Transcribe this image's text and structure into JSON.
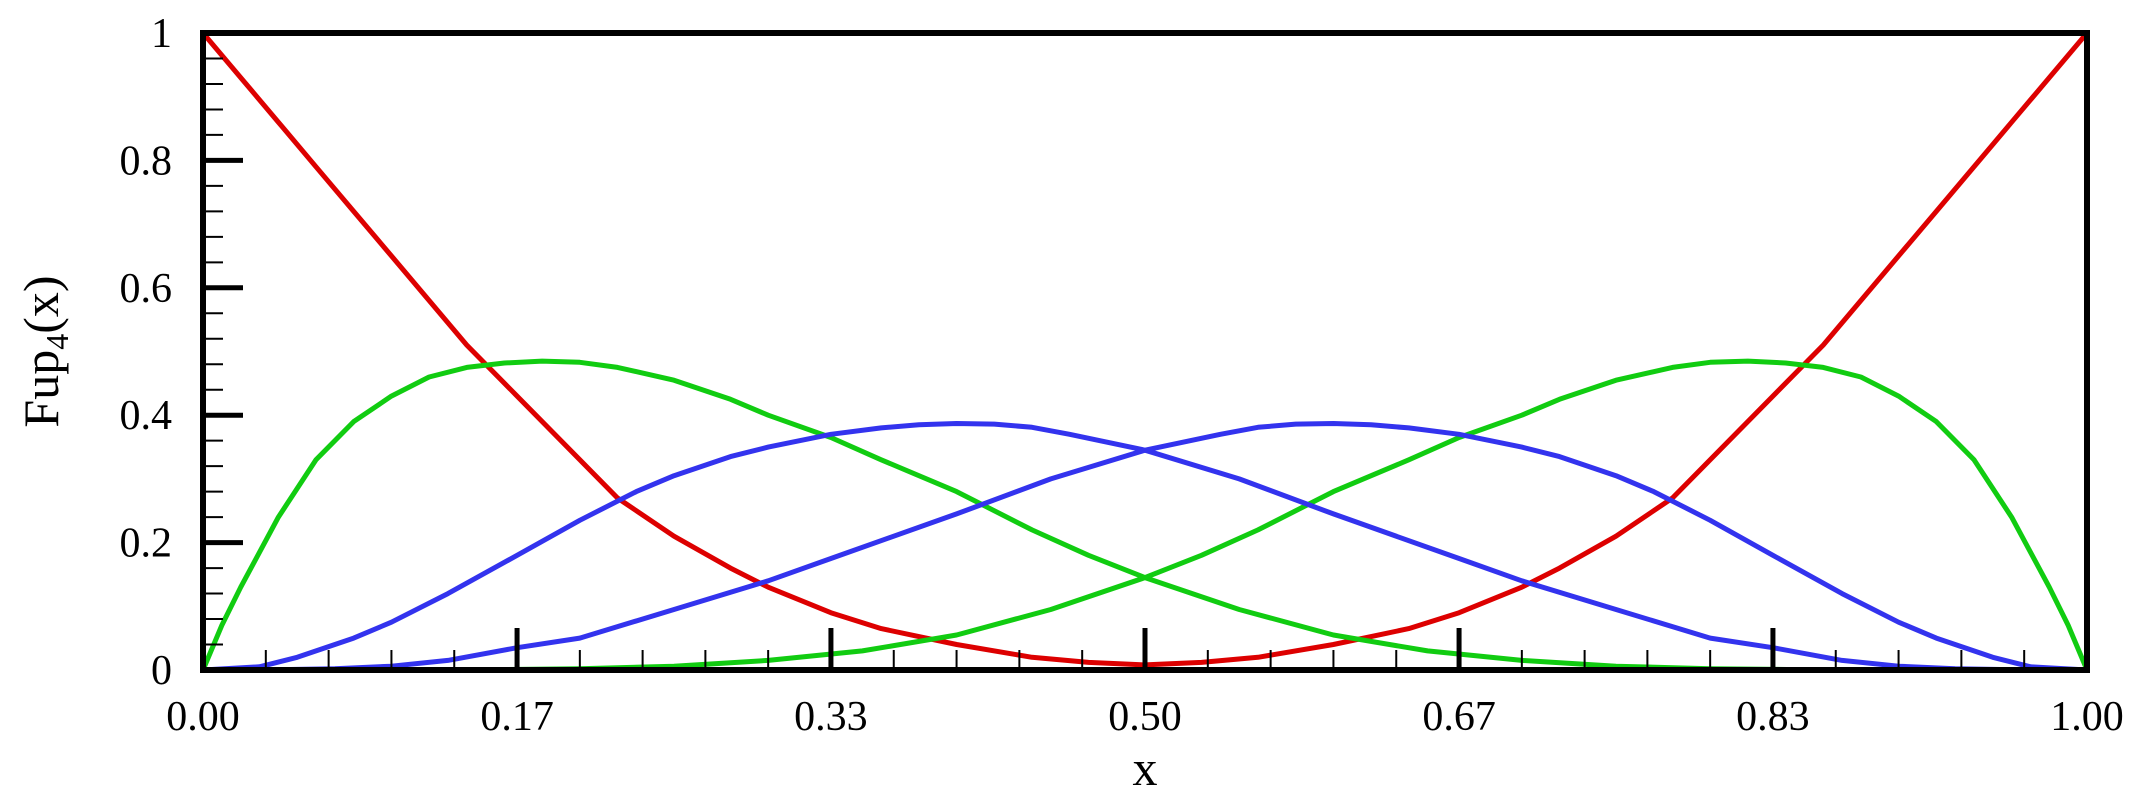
{
  "chart_data": {
    "type": "line",
    "title": "",
    "xlabel": "x",
    "ylabel": "Fup",
    "ylabel_sub": "4",
    "ylabel_tail": "(x)",
    "xlim": [
      0,
      1
    ],
    "ylim": [
      0,
      1
    ],
    "x_ticks": [
      0,
      0.1667,
      0.3333,
      0.5,
      0.6667,
      0.8333,
      1
    ],
    "x_tick_labels": [
      "0.00",
      "0.17",
      "0.33",
      "0.50",
      "0.67",
      "0.83",
      "1.00"
    ],
    "y_ticks": [
      0,
      0.2,
      0.4,
      0.6,
      0.8,
      1
    ],
    "y_tick_labels": [
      "0",
      "0.2",
      "0.4",
      "0.6",
      "0.8",
      "1"
    ],
    "grid": false,
    "legend": "none",
    "colors": {
      "red": "#dd0000",
      "green": "#11cc11",
      "blue": "#3333ee",
      "axis": "#000000"
    },
    "series": [
      {
        "color_key": "red",
        "x": [
          0,
          0.02,
          0.04,
          0.06,
          0.08,
          0.1,
          0.12,
          0.14,
          0.1667,
          0.2,
          0.22,
          0.25,
          0.28,
          0.3,
          0.3333,
          0.36,
          0.4,
          0.44,
          0.47,
          0.5
        ],
        "y": [
          1,
          0.93,
          0.86,
          0.79,
          0.72,
          0.65,
          0.58,
          0.51,
          0.43,
          0.33,
          0.27,
          0.21,
          0.16,
          0.13,
          0.09,
          0.065,
          0.04,
          0.02,
          0.012,
          0.008
        ]
      },
      {
        "color_key": "red",
        "x": [
          0.5,
          0.53,
          0.56,
          0.6,
          0.64,
          0.6667,
          0.7,
          0.72,
          0.75,
          0.78,
          0.8,
          0.8333,
          0.86,
          0.88,
          0.9,
          0.92,
          0.94,
          0.96,
          0.98,
          1
        ],
        "y": [
          0.008,
          0.012,
          0.02,
          0.04,
          0.065,
          0.09,
          0.13,
          0.16,
          0.21,
          0.27,
          0.33,
          0.43,
          0.51,
          0.58,
          0.65,
          0.72,
          0.79,
          0.86,
          0.93,
          1
        ]
      },
      {
        "color_key": "green",
        "x": [
          0,
          0.01,
          0.02,
          0.04,
          0.06,
          0.08,
          0.1,
          0.12,
          0.14,
          0.16,
          0.18,
          0.2,
          0.22,
          0.25,
          0.28,
          0.3,
          0.3333,
          0.36,
          0.4,
          0.44,
          0.47,
          0.5,
          0.55,
          0.6,
          0.65,
          0.7,
          0.75,
          0.8,
          0.85,
          0.9,
          0.95,
          1
        ],
        "y": [
          0,
          0.07,
          0.13,
          0.24,
          0.33,
          0.39,
          0.43,
          0.46,
          0.475,
          0.482,
          0.485,
          0.483,
          0.475,
          0.455,
          0.425,
          0.4,
          0.365,
          0.33,
          0.28,
          0.22,
          0.18,
          0.145,
          0.095,
          0.055,
          0.03,
          0.015,
          0.006,
          0.002,
          0.0005,
          0.0001,
          0,
          0
        ]
      },
      {
        "color_key": "green",
        "x": [
          0,
          0.05,
          0.1,
          0.15,
          0.2,
          0.25,
          0.3,
          0.35,
          0.4,
          0.45,
          0.5,
          0.53,
          0.56,
          0.6,
          0.64,
          0.6667,
          0.7,
          0.72,
          0.75,
          0.78,
          0.8,
          0.82,
          0.84,
          0.86,
          0.88,
          0.9,
          0.92,
          0.94,
          0.96,
          0.98,
          0.99,
          1
        ],
        "y": [
          0,
          0,
          0.0001,
          0.0005,
          0.002,
          0.006,
          0.015,
          0.03,
          0.055,
          0.095,
          0.145,
          0.18,
          0.22,
          0.28,
          0.33,
          0.365,
          0.4,
          0.425,
          0.455,
          0.475,
          0.483,
          0.485,
          0.482,
          0.475,
          0.46,
          0.43,
          0.39,
          0.33,
          0.24,
          0.13,
          0.07,
          0
        ]
      },
      {
        "color_key": "blue",
        "x": [
          0,
          0.03,
          0.05,
          0.08,
          0.1,
          0.13,
          0.1667,
          0.2,
          0.23,
          0.25,
          0.28,
          0.3,
          0.3333,
          0.36,
          0.38,
          0.4,
          0.42,
          0.44,
          0.46,
          0.5,
          0.55,
          0.6,
          0.6667,
          0.7,
          0.75,
          0.8,
          0.8333,
          0.87,
          0.9,
          0.93,
          0.97,
          1
        ],
        "y": [
          0,
          0.005,
          0.02,
          0.05,
          0.075,
          0.12,
          0.18,
          0.235,
          0.28,
          0.305,
          0.335,
          0.35,
          0.37,
          0.38,
          0.385,
          0.387,
          0.386,
          0.381,
          0.37,
          0.345,
          0.3,
          0.245,
          0.175,
          0.14,
          0.095,
          0.05,
          0.035,
          0.015,
          0.006,
          0.002,
          0,
          0
        ]
      },
      {
        "color_key": "blue",
        "x": [
          0,
          0.03,
          0.07,
          0.1,
          0.13,
          0.1667,
          0.2,
          0.25,
          0.3,
          0.3333,
          0.4,
          0.45,
          0.5,
          0.54,
          0.56,
          0.58,
          0.6,
          0.62,
          0.64,
          0.6667,
          0.7,
          0.72,
          0.75,
          0.77,
          0.8,
          0.8333,
          0.87,
          0.9,
          0.92,
          0.95,
          0.97,
          1
        ],
        "y": [
          0,
          0,
          0.002,
          0.006,
          0.015,
          0.035,
          0.05,
          0.095,
          0.14,
          0.175,
          0.245,
          0.3,
          0.345,
          0.37,
          0.381,
          0.386,
          0.387,
          0.385,
          0.38,
          0.37,
          0.35,
          0.335,
          0.305,
          0.28,
          0.235,
          0.18,
          0.12,
          0.075,
          0.05,
          0.02,
          0.005,
          0
        ]
      }
    ]
  }
}
